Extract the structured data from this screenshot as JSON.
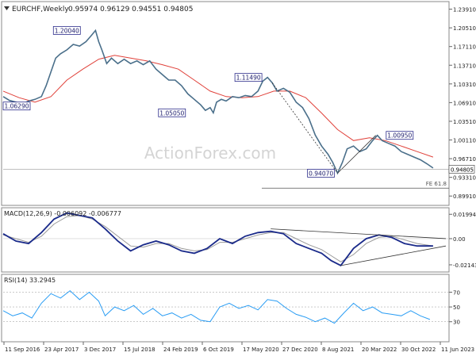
{
  "chart_data": {
    "type": "line",
    "header": {
      "symbol_icon": "triangle-down-icon",
      "label": "EURCHF,Weekly",
      "ohlc": "0.95974 0.96129 0.94551 0.94805"
    },
    "watermark": "ActionForex.com",
    "x_ticks": [
      "11 Sep 2016",
      "23 Apr 2017",
      "3 Dec 2017",
      "15 Jul 2018",
      "24 Feb 2019",
      "6 Oct 2019",
      "17 May 2020",
      "27 Dec 2020",
      "8 Aug 2021",
      "20 Mar 2022",
      "30 Oct 2022",
      "11 Jun 2023"
    ],
    "price_panel": {
      "y_ticks": [
        "1.23910",
        "1.20510",
        "1.17110",
        "1.13710",
        "1.10310",
        "1.06910",
        "1.03510",
        "1.00110",
        "0.96710",
        "0.93310",
        "0.89910"
      ],
      "ylim": [
        0.885,
        1.25
      ],
      "close_label": "0.94805",
      "close_value": 0.94805,
      "fe_label": "FE 61.8",
      "fe_value": 0.9135,
      "price_color": "#4a6f8a",
      "ma_color": "#e0413a",
      "labels": [
        {
          "text": "1.20040",
          "t": 0.2,
          "v": 1.2004
        },
        {
          "text": "1.06290",
          "t": 0.015,
          "v": 1.0629
        },
        {
          "text": "1.05050",
          "t": 0.53,
          "v": 1.0505
        },
        {
          "text": "1.11490",
          "t": 0.77,
          "v": 1.1149
        },
        {
          "text": "1.00950",
          "t": 1.245,
          "v": 1.0095
        },
        {
          "text": "0.94070",
          "t": 0.998,
          "v": 0.9407
        }
      ],
      "price_path": [
        [
          0.0,
          1.08
        ],
        [
          0.02,
          1.073
        ],
        [
          0.04,
          1.07
        ],
        [
          0.06,
          1.066
        ],
        [
          0.08,
          1.072
        ],
        [
          0.1,
          1.075
        ],
        [
          0.12,
          1.08
        ],
        [
          0.135,
          1.1
        ],
        [
          0.15,
          1.125
        ],
        [
          0.165,
          1.15
        ],
        [
          0.18,
          1.158
        ],
        [
          0.2,
          1.165
        ],
        [
          0.22,
          1.175
        ],
        [
          0.24,
          1.172
        ],
        [
          0.26,
          1.18
        ],
        [
          0.275,
          1.19
        ],
        [
          0.29,
          1.2004
        ],
        [
          0.3,
          1.18
        ],
        [
          0.31,
          1.165
        ],
        [
          0.325,
          1.14
        ],
        [
          0.34,
          1.15
        ],
        [
          0.36,
          1.14
        ],
        [
          0.38,
          1.148
        ],
        [
          0.4,
          1.14
        ],
        [
          0.42,
          1.145
        ],
        [
          0.44,
          1.138
        ],
        [
          0.46,
          1.145
        ],
        [
          0.48,
          1.13
        ],
        [
          0.5,
          1.12
        ],
        [
          0.52,
          1.11
        ],
        [
          0.54,
          1.11
        ],
        [
          0.56,
          1.1
        ],
        [
          0.58,
          1.085
        ],
        [
          0.6,
          1.075
        ],
        [
          0.62,
          1.065
        ],
        [
          0.635,
          1.055
        ],
        [
          0.65,
          1.06
        ],
        [
          0.66,
          1.0505
        ],
        [
          0.67,
          1.07
        ],
        [
          0.685,
          1.075
        ],
        [
          0.7,
          1.072
        ],
        [
          0.72,
          1.08
        ],
        [
          0.74,
          1.078
        ],
        [
          0.76,
          1.082
        ],
        [
          0.78,
          1.08
        ],
        [
          0.8,
          1.09
        ],
        [
          0.815,
          1.108
        ],
        [
          0.83,
          1.1149
        ],
        [
          0.845,
          1.105
        ],
        [
          0.86,
          1.09
        ],
        [
          0.88,
          1.095
        ],
        [
          0.9,
          1.088
        ],
        [
          0.92,
          1.07
        ],
        [
          0.94,
          1.06
        ],
        [
          0.96,
          1.04
        ],
        [
          0.98,
          1.01
        ],
        [
          1.0,
          0.99
        ],
        [
          1.02,
          0.975
        ],
        [
          1.035,
          0.96
        ],
        [
          1.05,
          0.9407
        ],
        [
          1.065,
          0.96
        ],
        [
          1.08,
          0.985
        ],
        [
          1.1,
          0.99
        ],
        [
          1.12,
          0.98
        ],
        [
          1.14,
          0.985
        ],
        [
          1.16,
          1.0
        ],
        [
          1.175,
          1.0095
        ],
        [
          1.19,
          1.0
        ],
        [
          1.21,
          0.995
        ],
        [
          1.23,
          0.99
        ],
        [
          1.25,
          0.98
        ],
        [
          1.27,
          0.975
        ],
        [
          1.29,
          0.97
        ],
        [
          1.31,
          0.965
        ],
        [
          1.33,
          0.958
        ],
        [
          1.35,
          0.95
        ]
      ],
      "ma_path": [
        [
          0.0,
          1.09
        ],
        [
          0.05,
          1.078
        ],
        [
          0.1,
          1.07
        ],
        [
          0.15,
          1.08
        ],
        [
          0.2,
          1.11
        ],
        [
          0.25,
          1.13
        ],
        [
          0.3,
          1.148
        ],
        [
          0.35,
          1.155
        ],
        [
          0.4,
          1.15
        ],
        [
          0.45,
          1.145
        ],
        [
          0.5,
          1.138
        ],
        [
          0.55,
          1.13
        ],
        [
          0.6,
          1.11
        ],
        [
          0.65,
          1.09
        ],
        [
          0.7,
          1.08
        ],
        [
          0.75,
          1.078
        ],
        [
          0.8,
          1.08
        ],
        [
          0.85,
          1.09
        ],
        [
          0.9,
          1.09
        ],
        [
          0.95,
          1.078
        ],
        [
          1.0,
          1.05
        ],
        [
          1.05,
          1.02
        ],
        [
          1.1,
          1.0
        ],
        [
          1.15,
          1.005
        ],
        [
          1.2,
          1.0
        ],
        [
          1.25,
          0.99
        ],
        [
          1.3,
          0.98
        ],
        [
          1.35,
          0.97
        ]
      ],
      "dotted_line": [
        [
          0.845,
          1.105
        ],
        [
          1.05,
          0.9407
        ]
      ],
      "trendline": [
        [
          1.05,
          0.9407
        ],
        [
          1.17,
          1.0095
        ]
      ]
    },
    "macd_panel": {
      "label": "MACD(12,26,9) -0.006092 -0.006777",
      "y_ticks": [
        "0.019943",
        "0.00",
        "-0.021434"
      ],
      "ylim": [
        -0.026,
        0.024
      ],
      "macd_color": "#1a2a8a",
      "signal_color": "#9a9a9a",
      "macd_path": [
        [
          0.0,
          0.004
        ],
        [
          0.04,
          -0.002
        ],
        [
          0.08,
          -0.004
        ],
        [
          0.12,
          0.005
        ],
        [
          0.16,
          0.016
        ],
        [
          0.2,
          0.021
        ],
        [
          0.24,
          0.019
        ],
        [
          0.28,
          0.017
        ],
        [
          0.32,
          0.008
        ],
        [
          0.36,
          -0.002
        ],
        [
          0.4,
          -0.01
        ],
        [
          0.44,
          -0.005
        ],
        [
          0.48,
          -0.002
        ],
        [
          0.52,
          -0.005
        ],
        [
          0.56,
          -0.01
        ],
        [
          0.6,
          -0.012
        ],
        [
          0.64,
          -0.008
        ],
        [
          0.68,
          0.0
        ],
        [
          0.72,
          -0.004
        ],
        [
          0.76,
          0.002
        ],
        [
          0.8,
          0.005
        ],
        [
          0.84,
          0.006
        ],
        [
          0.88,
          0.004
        ],
        [
          0.92,
          -0.004
        ],
        [
          0.96,
          -0.008
        ],
        [
          1.0,
          -0.012
        ],
        [
          1.03,
          -0.018
        ],
        [
          1.06,
          -0.022
        ],
        [
          1.1,
          -0.008
        ],
        [
          1.14,
          0.0
        ],
        [
          1.18,
          0.003
        ],
        [
          1.22,
          0.001
        ],
        [
          1.26,
          -0.004
        ],
        [
          1.3,
          -0.006
        ],
        [
          1.35,
          -0.006
        ]
      ],
      "signal_path": [
        [
          0.0,
          0.003
        ],
        [
          0.04,
          0.0
        ],
        [
          0.08,
          -0.003
        ],
        [
          0.12,
          0.002
        ],
        [
          0.16,
          0.012
        ],
        [
          0.2,
          0.018
        ],
        [
          0.24,
          0.019
        ],
        [
          0.28,
          0.016
        ],
        [
          0.32,
          0.01
        ],
        [
          0.36,
          0.002
        ],
        [
          0.4,
          -0.006
        ],
        [
          0.44,
          -0.007
        ],
        [
          0.48,
          -0.004
        ],
        [
          0.52,
          -0.004
        ],
        [
          0.56,
          -0.008
        ],
        [
          0.6,
          -0.01
        ],
        [
          0.64,
          -0.009
        ],
        [
          0.68,
          -0.003
        ],
        [
          0.72,
          -0.003
        ],
        [
          0.76,
          0.0
        ],
        [
          0.8,
          0.003
        ],
        [
          0.84,
          0.005
        ],
        [
          0.88,
          0.005
        ],
        [
          0.92,
          0.0
        ],
        [
          0.96,
          -0.005
        ],
        [
          1.0,
          -0.009
        ],
        [
          1.03,
          -0.014
        ],
        [
          1.06,
          -0.019
        ],
        [
          1.1,
          -0.013
        ],
        [
          1.14,
          -0.004
        ],
        [
          1.18,
          0.001
        ],
        [
          1.22,
          0.002
        ],
        [
          1.26,
          -0.001
        ],
        [
          1.3,
          -0.004
        ],
        [
          1.35,
          -0.006
        ]
      ],
      "upper_trendline": [
        [
          0.84,
          0.008
        ],
        [
          1.39,
          0.0
        ]
      ],
      "lower_trendline": [
        [
          1.06,
          -0.022
        ],
        [
          1.39,
          -0.006
        ]
      ]
    },
    "rsi_panel": {
      "label": "RSI(14) 33.2945",
      "y_ticks": [
        "70",
        "50",
        "30"
      ],
      "ylim": [
        5,
        92
      ],
      "rsi_color": "#2a9df4",
      "rsi_path": [
        [
          0.0,
          45
        ],
        [
          0.03,
          38
        ],
        [
          0.06,
          42
        ],
        [
          0.09,
          35
        ],
        [
          0.12,
          55
        ],
        [
          0.15,
          68
        ],
        [
          0.18,
          62
        ],
        [
          0.21,
          72
        ],
        [
          0.24,
          60
        ],
        [
          0.27,
          70
        ],
        [
          0.3,
          58
        ],
        [
          0.32,
          38
        ],
        [
          0.35,
          50
        ],
        [
          0.38,
          45
        ],
        [
          0.41,
          52
        ],
        [
          0.44,
          40
        ],
        [
          0.47,
          48
        ],
        [
          0.5,
          38
        ],
        [
          0.53,
          42
        ],
        [
          0.56,
          35
        ],
        [
          0.59,
          40
        ],
        [
          0.62,
          32
        ],
        [
          0.65,
          30
        ],
        [
          0.68,
          50
        ],
        [
          0.71,
          55
        ],
        [
          0.74,
          48
        ],
        [
          0.77,
          52
        ],
        [
          0.8,
          46
        ],
        [
          0.83,
          60
        ],
        [
          0.86,
          58
        ],
        [
          0.89,
          48
        ],
        [
          0.92,
          40
        ],
        [
          0.95,
          36
        ],
        [
          0.98,
          30
        ],
        [
          1.01,
          35
        ],
        [
          1.04,
          28
        ],
        [
          1.07,
          42
        ],
        [
          1.1,
          55
        ],
        [
          1.13,
          45
        ],
        [
          1.16,
          50
        ],
        [
          1.19,
          42
        ],
        [
          1.22,
          40
        ],
        [
          1.25,
          38
        ],
        [
          1.28,
          45
        ],
        [
          1.31,
          38
        ],
        [
          1.34,
          33
        ]
      ]
    }
  }
}
